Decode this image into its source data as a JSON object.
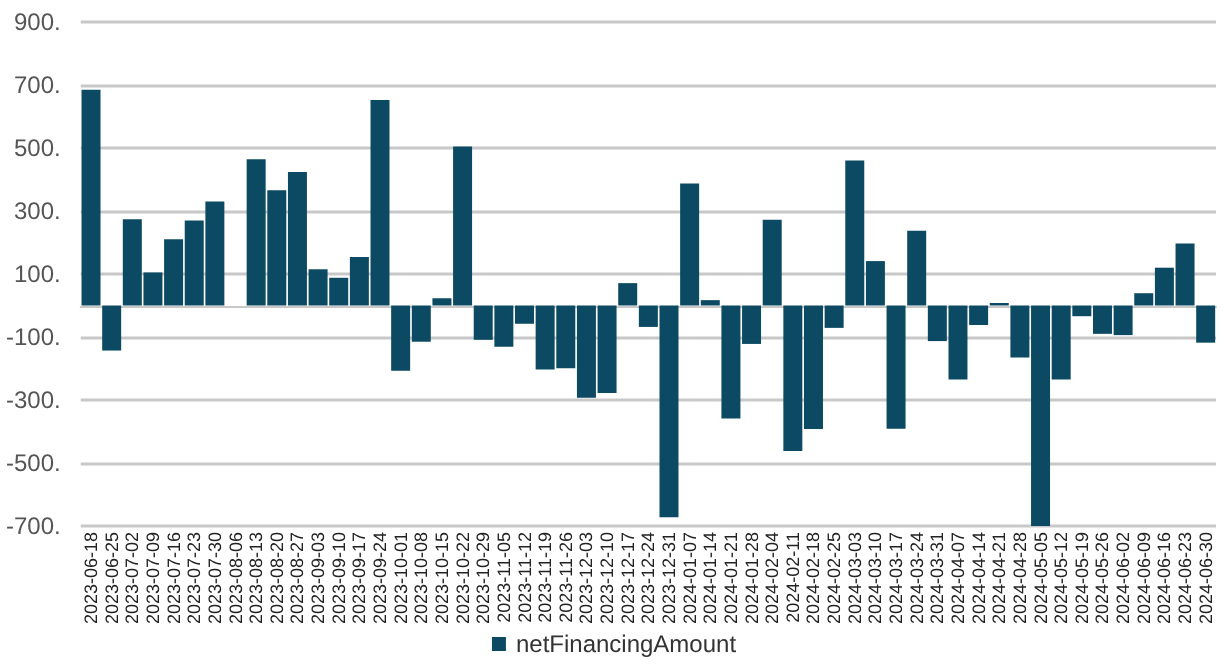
{
  "chart_data": {
    "type": "bar",
    "categories": [
      "2023-06-18",
      "2023-06-25",
      "2023-07-02",
      "2023-07-09",
      "2023-07-16",
      "2023-07-23",
      "2023-07-30",
      "2023-08-06",
      "2023-08-13",
      "2023-08-20",
      "2023-08-27",
      "2023-09-03",
      "2023-09-10",
      "2023-09-17",
      "2023-09-24",
      "2023-10-01",
      "2023-10-08",
      "2023-10-15",
      "2023-10-22",
      "2023-10-29",
      "2023-11-05",
      "2023-11-12",
      "2023-11-19",
      "2023-11-26",
      "2023-12-03",
      "2023-12-10",
      "2023-12-17",
      "2023-12-24",
      "2023-12-31",
      "2024-01-07",
      "2024-01-14",
      "2024-01-21",
      "2024-01-28",
      "2024-02-04",
      "2024-02-11",
      "2024-02-18",
      "2024-02-25",
      "2024-03-03",
      "2024-03-10",
      "2024-03-17",
      "2024-03-24",
      "2024-03-31",
      "2024-04-07",
      "2024-04-14",
      "2024-04-21",
      "2024-04-28",
      "2024-05-05",
      "2024-05-12",
      "2024-05-19",
      "2024-05-26",
      "2024-06-02",
      "2024-06-09",
      "2024-06-16",
      "2024-06-23",
      "2024-06-30"
    ],
    "series": [
      {
        "name": "netFinancingAmount",
        "color": "#0b4a62",
        "values": [
          685,
          -143,
          274,
          105,
          210,
          270,
          330,
          0,
          464,
          366,
          424,
          115,
          88,
          154,
          652,
          -207,
          -115,
          23,
          505,
          -109,
          -131,
          -58,
          -203,
          -199,
          -293,
          -278,
          71,
          -68,
          -672,
          387,
          17,
          -359,
          -122,
          272,
          -462,
          -392,
          -71,
          460,
          141,
          -391,
          237,
          -113,
          -235,
          -62,
          8,
          -165,
          -700,
          -235,
          -34,
          -90,
          -94,
          39,
          120,
          197,
          -118
        ]
      }
    ],
    "ylim": [
      -700,
      900
    ],
    "yticks": [
      {
        "value": -700,
        "label": "-700."
      },
      {
        "value": -500,
        "label": "-500."
      },
      {
        "value": -300,
        "label": "-300."
      },
      {
        "value": -100,
        "label": "-100."
      },
      {
        "value": 100,
        "label": "100."
      },
      {
        "value": 300,
        "label": "300."
      },
      {
        "value": 500,
        "label": "500."
      },
      {
        "value": 700,
        "label": "700."
      },
      {
        "value": 900,
        "label": "900."
      }
    ],
    "grid": "y",
    "legend": "bottom"
  }
}
